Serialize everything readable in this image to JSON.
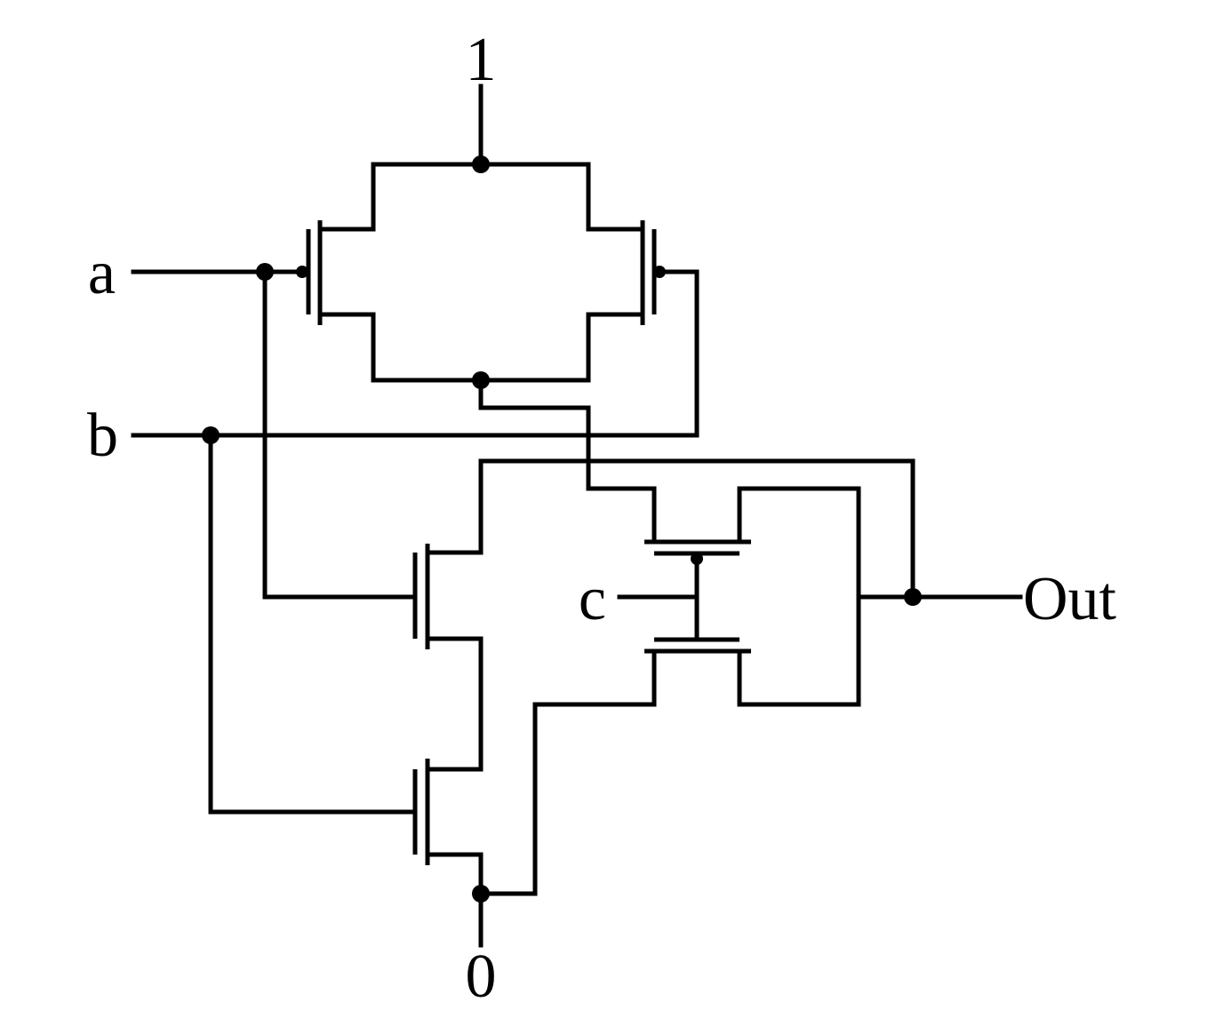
{
  "diagram": {
    "labels": {
      "vdd": "1",
      "gnd": "0",
      "input_a": "a",
      "input_b": "b",
      "input_c": "c",
      "output": "Out"
    },
    "line_color": "#000000",
    "background_color": "#ffffff"
  }
}
